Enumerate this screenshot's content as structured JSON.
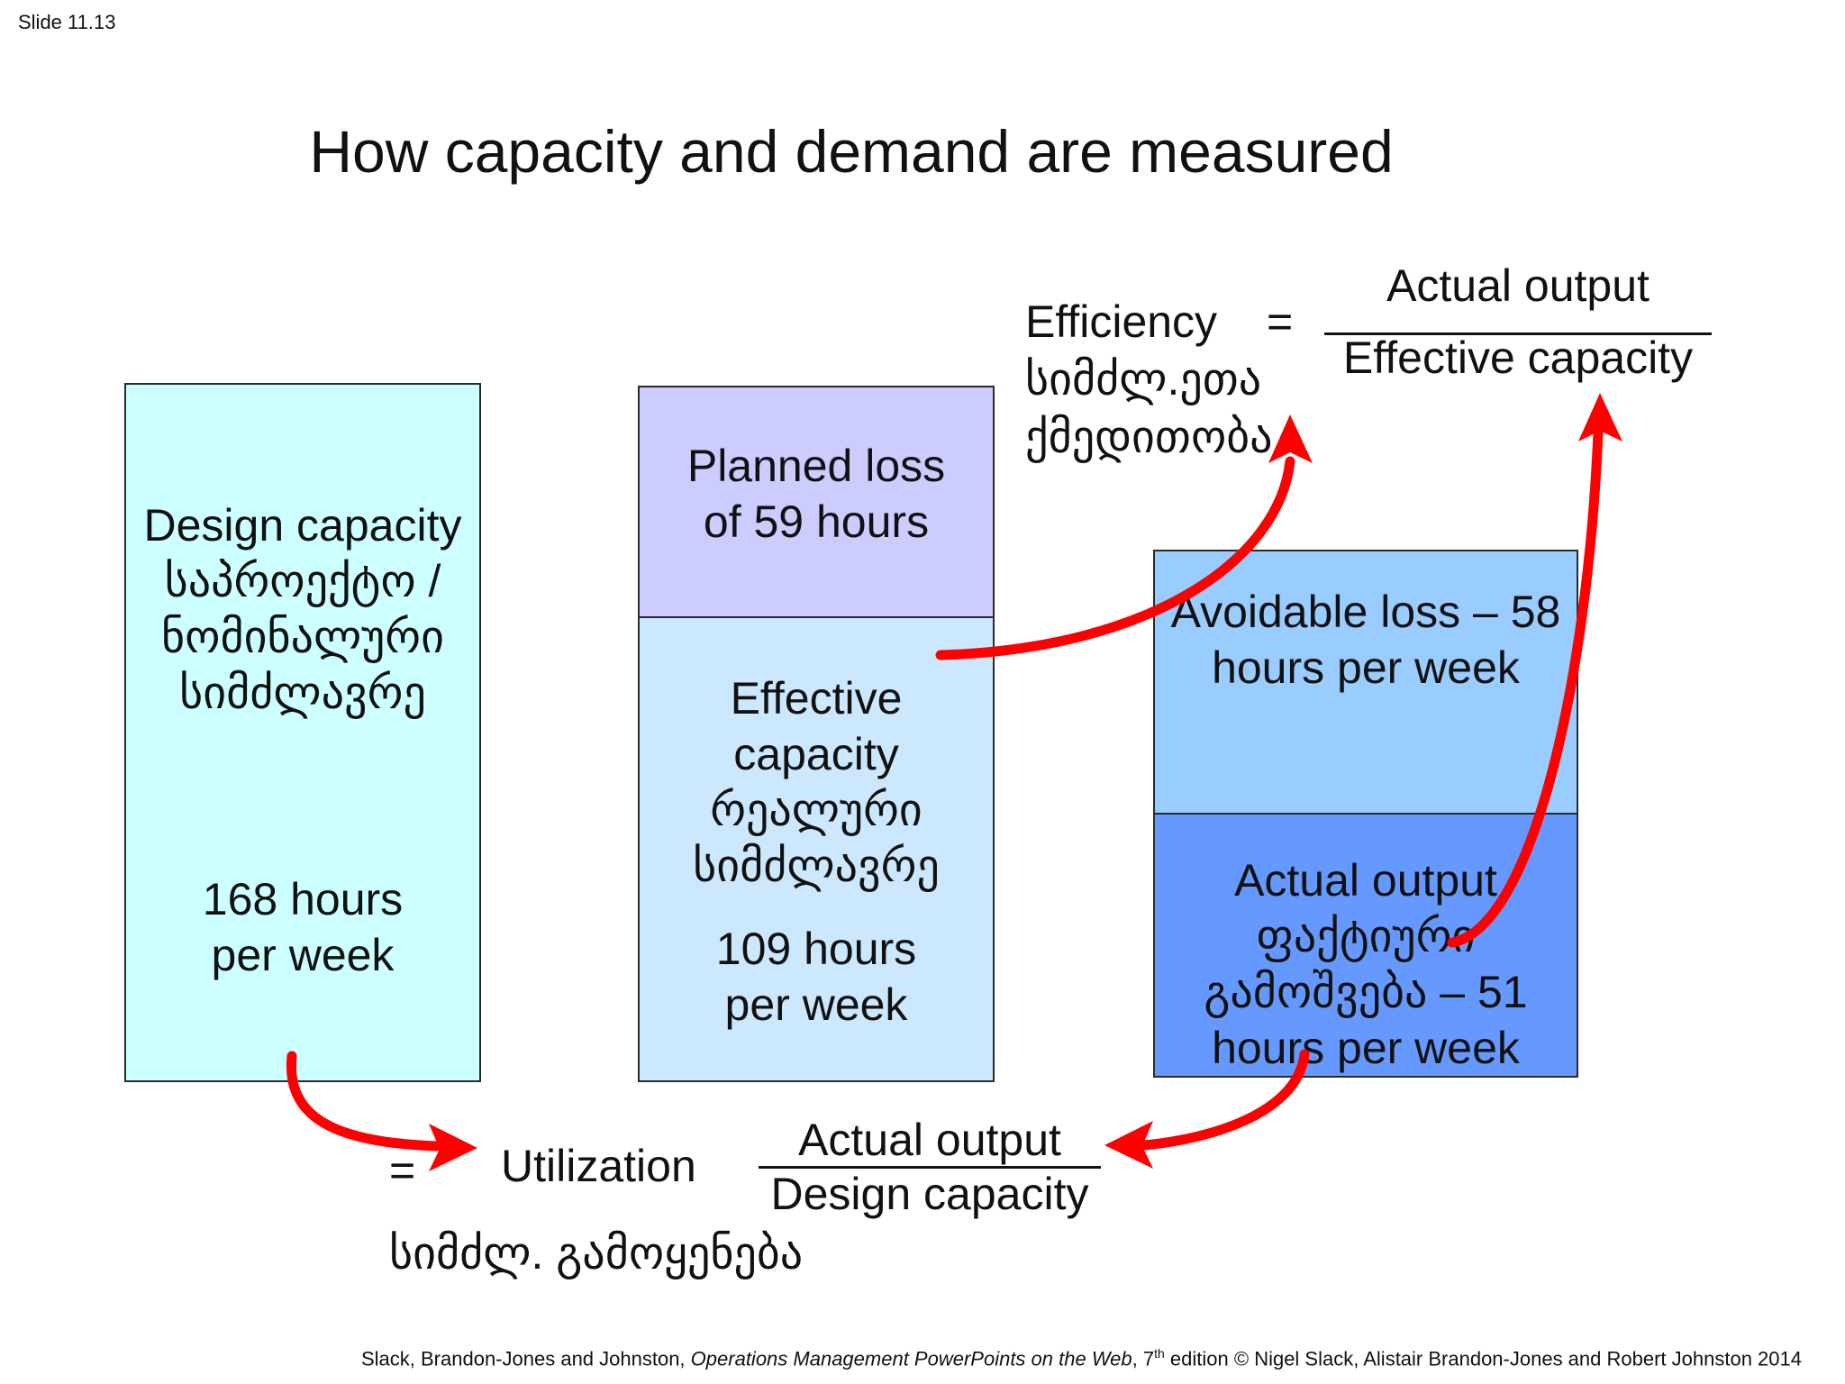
{
  "slide_number": "Slide 11.13",
  "title": "How capacity and demand are measured",
  "boxes": {
    "design": {
      "line1": "Design capacity",
      "line2": "საპროექტო /",
      "line3": "ნომინალური",
      "line4": "სიმძლავრე",
      "hours1": "168 hours",
      "hours2": "per week",
      "color": "#ccffff"
    },
    "planned_loss": {
      "line1": "Planned loss",
      "line2": "of 59 hours",
      "color": "#ccccff"
    },
    "effective": {
      "line1": "Effective",
      "line2": "capacity",
      "line3": "რეალური",
      "line4": "სიმძლავრე",
      "hours1": "109 hours",
      "hours2": "per week",
      "color": "#cce8ff"
    },
    "avoidable_loss": {
      "line1": "Avoidable loss – 58",
      "line2": "hours per week",
      "color": "#99ccff"
    },
    "actual_output": {
      "line1": "Actual output",
      "line2": "ფაქტიური",
      "line3": "გამოშვება – 51",
      "line4": "hours per week",
      "color": "#6699ff"
    }
  },
  "efficiency": {
    "label": "Efficiency",
    "equals": "=",
    "georgian1": "სიმძლ.ეთა",
    "georgian2": "ქმედითობა",
    "numerator": "Actual output",
    "denominator": "Effective capacity"
  },
  "utilization": {
    "equals": "=",
    "label": "Utilization",
    "georgian": "სიმძლ. გამოყენება",
    "numerator": "Actual output",
    "denominator": "Design capacity"
  },
  "footer": {
    "authors": "Slack, Brandon-Jones and Johnston, ",
    "book": "Operations Management PowerPoints on the Web",
    "edition_num": ", 7",
    "edition_sup": "th",
    "rest": " edition © Nigel Slack, Alistair Brandon-Jones and Robert Johnston 2014"
  },
  "colors": {
    "arrow": "#ff0000"
  }
}
